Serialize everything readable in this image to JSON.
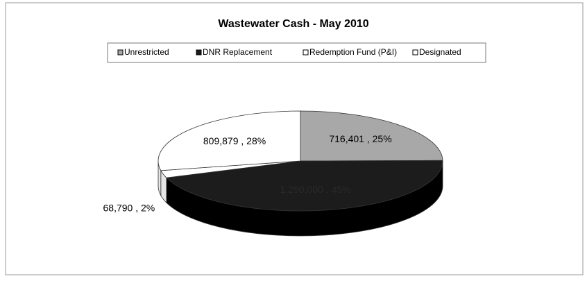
{
  "chart_data": {
    "type": "pie3d",
    "title": "Wastewater Cash - May 2010",
    "categories": [
      "Unrestricted",
      "DNR Replacement",
      "Redemption Fund (P&I)",
      "Designated"
    ],
    "values": [
      716401,
      1290000,
      68790,
      809879
    ],
    "value_labels": [
      "716,401 , 25%",
      "1,290,000 , 45%",
      "68,790 , 2%",
      "809,879 , 28%"
    ],
    "colors": [
      "#a8a8a8",
      "#1c1c1c",
      "#ffffff",
      "#ffffff"
    ],
    "legend": "top"
  }
}
